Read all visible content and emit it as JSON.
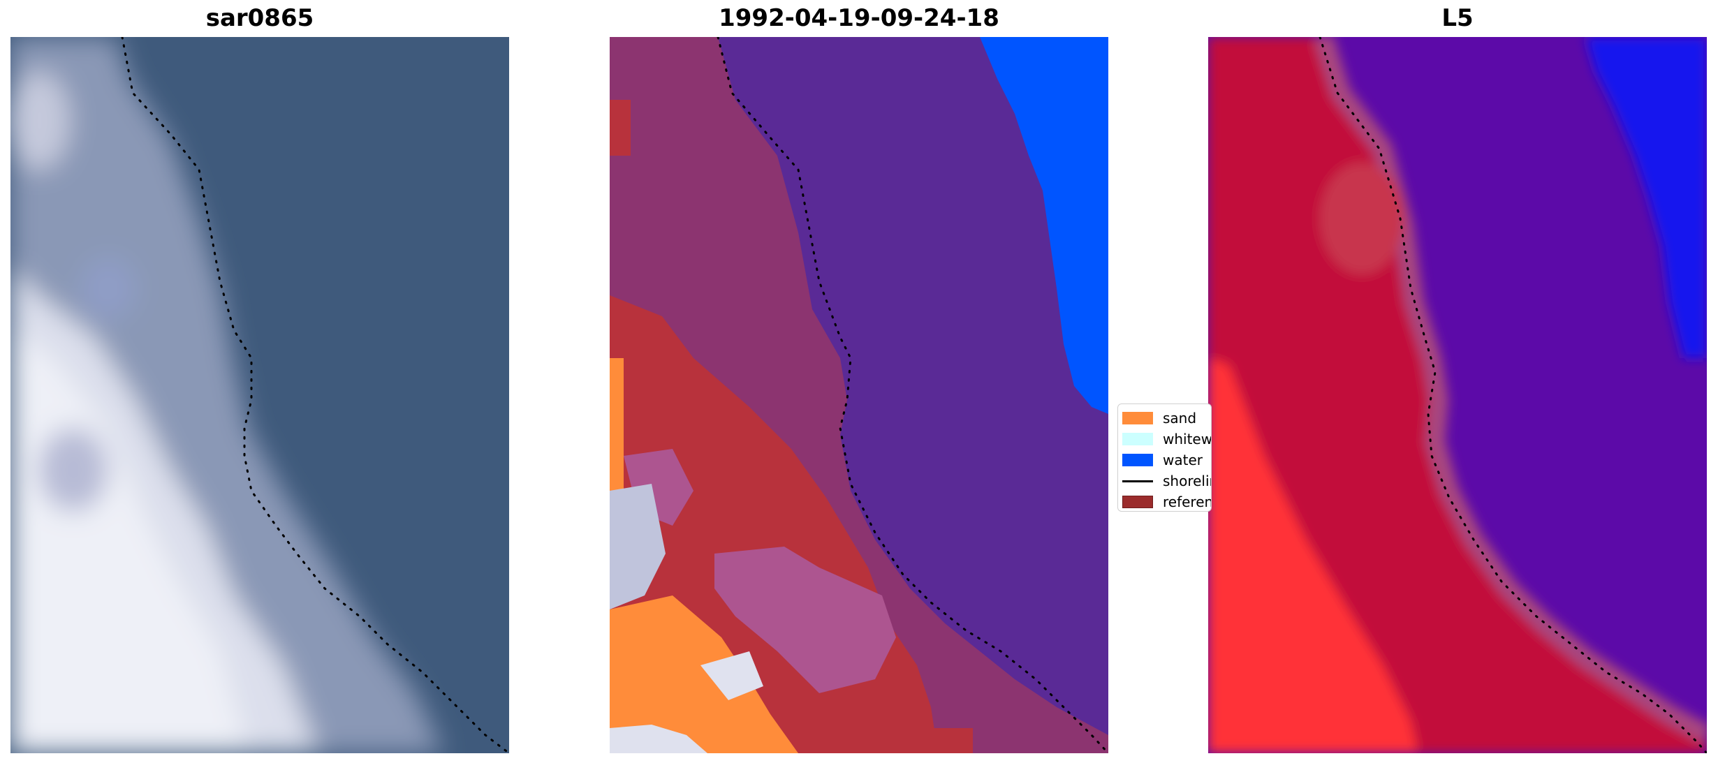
{
  "panels": [
    {
      "title": "sar0865"
    },
    {
      "title": "1992-04-19-09-24-18"
    },
    {
      "title": "L5"
    }
  ],
  "legend": {
    "items": [
      {
        "label": "sand",
        "color": "#ff8c3a",
        "kind": "patch"
      },
      {
        "label": "whitewater",
        "color": "#ccffff",
        "kind": "patch"
      },
      {
        "label": "water",
        "color": "#0055ff",
        "kind": "patch"
      },
      {
        "label": "shoreline",
        "color": "#000000",
        "kind": "line"
      },
      {
        "label": "reference shoreline",
        "color": "#9b2c2c",
        "kind": "patch"
      }
    ]
  },
  "colors": {
    "sea_rgb": "#3f5a7c",
    "white_beach": "#e6e8f2",
    "class_water": "#0055ff",
    "class_sand": "#ff8c3a",
    "class_overlay_dark": "#5a2a96",
    "class_overlay_land": "#8c3470",
    "class_red": "#b8323c",
    "index_red": "#c20a2e",
    "index_purple": "#5c0aa8",
    "index_blue": "#1414ee"
  }
}
